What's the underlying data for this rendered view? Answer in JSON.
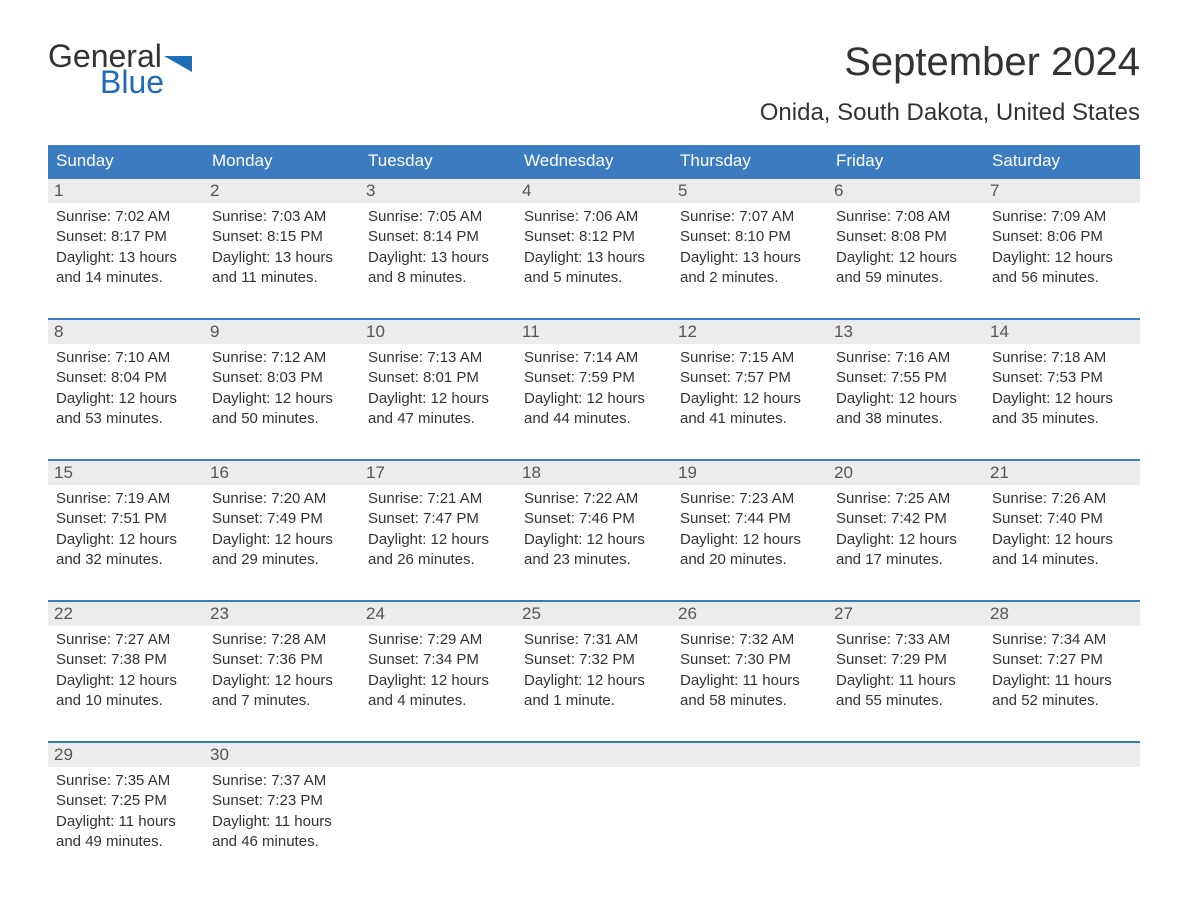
{
  "logo": {
    "word1": "General",
    "word2": "Blue",
    "flag_color": "#1e6bb8",
    "text_color_dark": "#333333",
    "text_color_blue": "#1e6bb8"
  },
  "title": "September 2024",
  "location": "Onida, South Dakota, United States",
  "colors": {
    "header_bg": "#3b7bbf",
    "header_text": "#ffffff",
    "daynum_bg": "#ececec",
    "daynum_border": "#3b7bbf",
    "body_text": "#333333",
    "page_bg": "#ffffff"
  },
  "day_headers": [
    "Sunday",
    "Monday",
    "Tuesday",
    "Wednesday",
    "Thursday",
    "Friday",
    "Saturday"
  ],
  "weeks": [
    [
      {
        "n": "1",
        "sunrise": "Sunrise: 7:02 AM",
        "sunset": "Sunset: 8:17 PM",
        "daylight": "Daylight: 13 hours and 14 minutes."
      },
      {
        "n": "2",
        "sunrise": "Sunrise: 7:03 AM",
        "sunset": "Sunset: 8:15 PM",
        "daylight": "Daylight: 13 hours and 11 minutes."
      },
      {
        "n": "3",
        "sunrise": "Sunrise: 7:05 AM",
        "sunset": "Sunset: 8:14 PM",
        "daylight": "Daylight: 13 hours and 8 minutes."
      },
      {
        "n": "4",
        "sunrise": "Sunrise: 7:06 AM",
        "sunset": "Sunset: 8:12 PM",
        "daylight": "Daylight: 13 hours and 5 minutes."
      },
      {
        "n": "5",
        "sunrise": "Sunrise: 7:07 AM",
        "sunset": "Sunset: 8:10 PM",
        "daylight": "Daylight: 13 hours and 2 minutes."
      },
      {
        "n": "6",
        "sunrise": "Sunrise: 7:08 AM",
        "sunset": "Sunset: 8:08 PM",
        "daylight": "Daylight: 12 hours and 59 minutes."
      },
      {
        "n": "7",
        "sunrise": "Sunrise: 7:09 AM",
        "sunset": "Sunset: 8:06 PM",
        "daylight": "Daylight: 12 hours and 56 minutes."
      }
    ],
    [
      {
        "n": "8",
        "sunrise": "Sunrise: 7:10 AM",
        "sunset": "Sunset: 8:04 PM",
        "daylight": "Daylight: 12 hours and 53 minutes."
      },
      {
        "n": "9",
        "sunrise": "Sunrise: 7:12 AM",
        "sunset": "Sunset: 8:03 PM",
        "daylight": "Daylight: 12 hours and 50 minutes."
      },
      {
        "n": "10",
        "sunrise": "Sunrise: 7:13 AM",
        "sunset": "Sunset: 8:01 PM",
        "daylight": "Daylight: 12 hours and 47 minutes."
      },
      {
        "n": "11",
        "sunrise": "Sunrise: 7:14 AM",
        "sunset": "Sunset: 7:59 PM",
        "daylight": "Daylight: 12 hours and 44 minutes."
      },
      {
        "n": "12",
        "sunrise": "Sunrise: 7:15 AM",
        "sunset": "Sunset: 7:57 PM",
        "daylight": "Daylight: 12 hours and 41 minutes."
      },
      {
        "n": "13",
        "sunrise": "Sunrise: 7:16 AM",
        "sunset": "Sunset: 7:55 PM",
        "daylight": "Daylight: 12 hours and 38 minutes."
      },
      {
        "n": "14",
        "sunrise": "Sunrise: 7:18 AM",
        "sunset": "Sunset: 7:53 PM",
        "daylight": "Daylight: 12 hours and 35 minutes."
      }
    ],
    [
      {
        "n": "15",
        "sunrise": "Sunrise: 7:19 AM",
        "sunset": "Sunset: 7:51 PM",
        "daylight": "Daylight: 12 hours and 32 minutes."
      },
      {
        "n": "16",
        "sunrise": "Sunrise: 7:20 AM",
        "sunset": "Sunset: 7:49 PM",
        "daylight": "Daylight: 12 hours and 29 minutes."
      },
      {
        "n": "17",
        "sunrise": "Sunrise: 7:21 AM",
        "sunset": "Sunset: 7:47 PM",
        "daylight": "Daylight: 12 hours and 26 minutes."
      },
      {
        "n": "18",
        "sunrise": "Sunrise: 7:22 AM",
        "sunset": "Sunset: 7:46 PM",
        "daylight": "Daylight: 12 hours and 23 minutes."
      },
      {
        "n": "19",
        "sunrise": "Sunrise: 7:23 AM",
        "sunset": "Sunset: 7:44 PM",
        "daylight": "Daylight: 12 hours and 20 minutes."
      },
      {
        "n": "20",
        "sunrise": "Sunrise: 7:25 AM",
        "sunset": "Sunset: 7:42 PM",
        "daylight": "Daylight: 12 hours and 17 minutes."
      },
      {
        "n": "21",
        "sunrise": "Sunrise: 7:26 AM",
        "sunset": "Sunset: 7:40 PM",
        "daylight": "Daylight: 12 hours and 14 minutes."
      }
    ],
    [
      {
        "n": "22",
        "sunrise": "Sunrise: 7:27 AM",
        "sunset": "Sunset: 7:38 PM",
        "daylight": "Daylight: 12 hours and 10 minutes."
      },
      {
        "n": "23",
        "sunrise": "Sunrise: 7:28 AM",
        "sunset": "Sunset: 7:36 PM",
        "daylight": "Daylight: 12 hours and 7 minutes."
      },
      {
        "n": "24",
        "sunrise": "Sunrise: 7:29 AM",
        "sunset": "Sunset: 7:34 PM",
        "daylight": "Daylight: 12 hours and 4 minutes."
      },
      {
        "n": "25",
        "sunrise": "Sunrise: 7:31 AM",
        "sunset": "Sunset: 7:32 PM",
        "daylight": "Daylight: 12 hours and 1 minute."
      },
      {
        "n": "26",
        "sunrise": "Sunrise: 7:32 AM",
        "sunset": "Sunset: 7:30 PM",
        "daylight": "Daylight: 11 hours and 58 minutes."
      },
      {
        "n": "27",
        "sunrise": "Sunrise: 7:33 AM",
        "sunset": "Sunset: 7:29 PM",
        "daylight": "Daylight: 11 hours and 55 minutes."
      },
      {
        "n": "28",
        "sunrise": "Sunrise: 7:34 AM",
        "sunset": "Sunset: 7:27 PM",
        "daylight": "Daylight: 11 hours and 52 minutes."
      }
    ],
    [
      {
        "n": "29",
        "sunrise": "Sunrise: 7:35 AM",
        "sunset": "Sunset: 7:25 PM",
        "daylight": "Daylight: 11 hours and 49 minutes."
      },
      {
        "n": "30",
        "sunrise": "Sunrise: 7:37 AM",
        "sunset": "Sunset: 7:23 PM",
        "daylight": "Daylight: 11 hours and 46 minutes."
      },
      null,
      null,
      null,
      null,
      null
    ]
  ]
}
